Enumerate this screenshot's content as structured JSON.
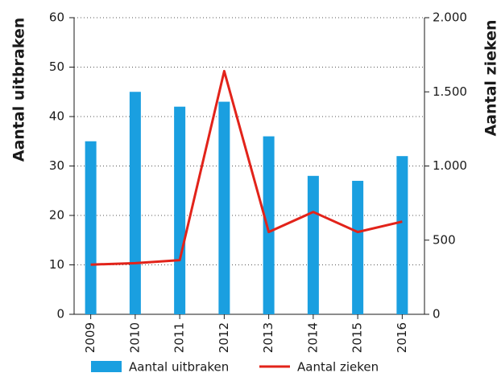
{
  "chart_data": {
    "type": "bar-line",
    "categories": [
      "2009",
      "2010",
      "2011",
      "2012",
      "2013",
      "2014",
      "2015",
      "2016"
    ],
    "series": [
      {
        "name": "Aantal uitbraken",
        "color": "#1a9fe0",
        "type": "bar",
        "values": [
          35,
          45,
          42,
          43,
          36,
          28,
          27,
          32
        ]
      },
      {
        "name": "Aantal zieken",
        "color": "#e2231a",
        "type": "line",
        "axis": "y2",
        "values": [
          335,
          345,
          365,
          1640,
          555,
          690,
          555,
          625
        ]
      }
    ],
    "ylabel": "Aantal uitbraken",
    "y2label": "Aantal zieken",
    "ylim": [
      0,
      60
    ],
    "yticks": [
      0,
      10,
      20,
      30,
      40,
      50,
      60
    ],
    "y2lim": [
      0,
      2000
    ],
    "y2ticks": [
      0,
      500,
      {
        "value": 1000,
        "label": "1.000"
      },
      {
        "value": 1500,
        "label": "1.500"
      },
      {
        "value": 2000,
        "label": "2.000"
      }
    ],
    "grid": true,
    "legend": "bottom"
  }
}
